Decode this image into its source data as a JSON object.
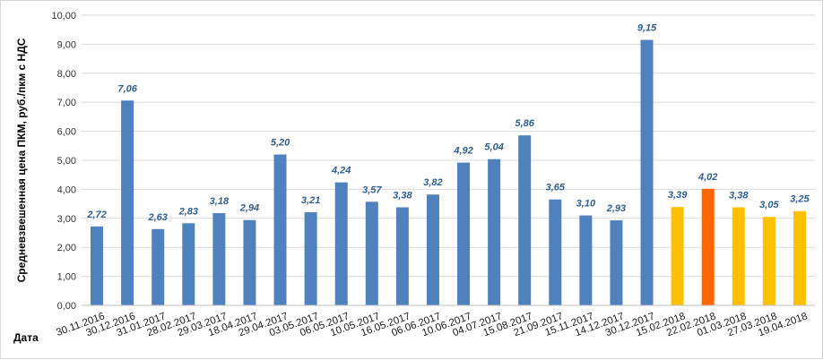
{
  "chart_data": {
    "type": "bar",
    "title": "",
    "xlabel": "Дата",
    "ylabel": "Средневзвешенная цена ПКМ, руб./пкм с НДС",
    "ylim": [
      0,
      10
    ],
    "yticks": [
      "0,00",
      "1,00",
      "2,00",
      "3,00",
      "4,00",
      "5,00",
      "6,00",
      "7,00",
      "8,00",
      "9,00",
      "10,00"
    ],
    "grid": true,
    "legend": "none",
    "colors": {
      "default": "#4f81bd",
      "highlight_2018": "#ffc000",
      "accent": "#ff6600"
    },
    "categories": [
      "30.11.2016",
      "30.12.2016",
      "31.01.2017",
      "28.02.2017",
      "29.03.2017",
      "18.04.2017",
      "29.04.2017",
      "03.05.2017",
      "06.05.2017",
      "10.05.2017",
      "16.05.2017",
      "06.06.2017",
      "10.06.2017",
      "04.07.2017",
      "15.08.2017",
      "21.09.2017",
      "15.11.2017",
      "14.12.2017",
      "30.12.2017",
      "15.02.2018",
      "22.02.2018",
      "01.03.2018",
      "27.03.2018",
      "19.04.2018"
    ],
    "values": [
      2.72,
      7.06,
      2.63,
      2.83,
      3.18,
      2.94,
      5.2,
      3.21,
      4.24,
      3.57,
      3.38,
      3.82,
      4.92,
      5.04,
      5.86,
      3.65,
      3.1,
      2.93,
      9.15,
      3.39,
      4.02,
      3.38,
      3.05,
      3.25
    ],
    "labels": [
      "2,72",
      "7,06",
      "2,63",
      "2,83",
      "3,18",
      "2,94",
      "5,20",
      "3,21",
      "4,24",
      "3,57",
      "3,38",
      "3,82",
      "4,92",
      "5,04",
      "5,86",
      "3,65",
      "3,10",
      "2,93",
      "9,15",
      "3,39",
      "4,02",
      "3,38",
      "3,05",
      "3,25"
    ],
    "bar_colors": [
      "#4f81bd",
      "#4f81bd",
      "#4f81bd",
      "#4f81bd",
      "#4f81bd",
      "#4f81bd",
      "#4f81bd",
      "#4f81bd",
      "#4f81bd",
      "#4f81bd",
      "#4f81bd",
      "#4f81bd",
      "#4f81bd",
      "#4f81bd",
      "#4f81bd",
      "#4f81bd",
      "#4f81bd",
      "#4f81bd",
      "#4f81bd",
      "#ffc000",
      "#ff6600",
      "#ffc000",
      "#ffc000",
      "#ffc000"
    ]
  }
}
